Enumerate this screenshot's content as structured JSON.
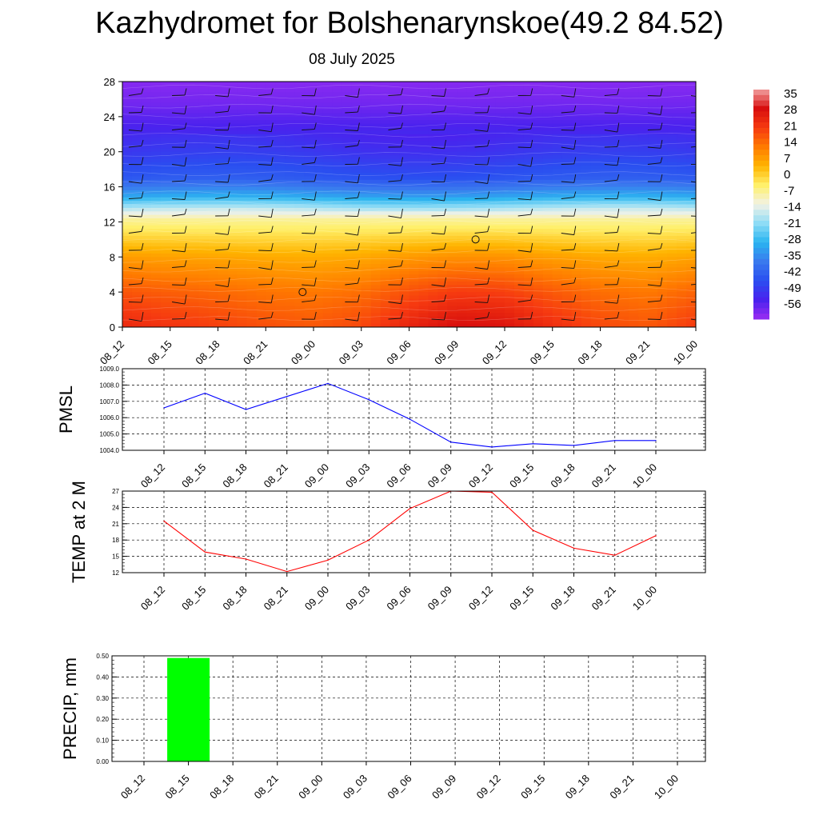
{
  "header": {
    "title": "Kazhydromet for Bolshenarynskoe(49.2 84.52)",
    "date": "08 July 2025"
  },
  "time_labels": [
    "08_12",
    "08_15",
    "08_18",
    "08_21",
    "09_00",
    "09_03",
    "09_06",
    "09_09",
    "09_12",
    "09_15",
    "09_18",
    "09_21",
    "10_00"
  ],
  "chart_data": [
    {
      "type": "heatmap",
      "id": "temperature-cross-section",
      "x": [
        "08_12",
        "08_15",
        "08_18",
        "08_21",
        "09_00",
        "09_03",
        "09_06",
        "09_09",
        "09_12",
        "09_15",
        "09_18",
        "09_21",
        "10_00"
      ],
      "y_ticks": [
        0,
        4,
        8,
        12,
        16,
        20,
        24,
        28
      ],
      "ylim": [
        0,
        28
      ],
      "colorbar": {
        "ticks": [
          "35",
          "28",
          "21",
          "14",
          "7",
          "0",
          "-7",
          "-14",
          "-21",
          "-28",
          "-35",
          "-42",
          "-49",
          "-56"
        ],
        "range": [
          -60,
          38
        ],
        "colors": [
          "#9a2cf2",
          "#4a22ee",
          "#2a4ef0",
          "#3a7aee",
          "#2ab4f0",
          "#8edcf6",
          "#f2f2e6",
          "#fff06a",
          "#ffb400",
          "#ff7a00",
          "#f63a10",
          "#d80e0e",
          "#f0a0a0"
        ]
      },
      "profile_by_height": [
        {
          "h": 0,
          "v": 23
        },
        {
          "h": 4,
          "v": 17
        },
        {
          "h": 8,
          "v": 8
        },
        {
          "h": 12.3,
          "v": -6
        },
        {
          "h": 13.5,
          "v": -16
        },
        {
          "h": 15,
          "v": -30
        },
        {
          "h": 17,
          "v": -42
        },
        {
          "h": 20,
          "v": -48
        },
        {
          "h": 23,
          "v": -52
        },
        {
          "h": 25.5,
          "v": -56
        },
        {
          "h": 28,
          "v": -58
        }
      ],
      "surface_anomaly_by_time": [
        2,
        0,
        -2,
        -4,
        -5,
        -3,
        3,
        7,
        6,
        1,
        -3,
        -5,
        -1
      ],
      "markers": [
        {
          "x": "09_00",
          "h": 4
        },
        {
          "x": "09_12",
          "h": 10
        }
      ]
    },
    {
      "type": "line",
      "id": "pmsl",
      "ylabel": "PMSL",
      "x": [
        "08_12",
        "08_15",
        "08_18",
        "08_21",
        "09_00",
        "09_03",
        "09_06",
        "09_09",
        "09_12",
        "09_15",
        "09_18",
        "09_21",
        "10_00"
      ],
      "series": [
        {
          "values": [
            1006.6,
            1007.5,
            1006.5,
            1007.3,
            1008.1,
            1007.1,
            1005.9,
            1004.5,
            1004.2,
            1004.4,
            1004.3,
            1004.6,
            1004.6
          ],
          "color": "#0000ff"
        }
      ],
      "ylim": [
        1004.0,
        1009.0
      ],
      "y_ticks": [
        "1004.0",
        "1005.0",
        "1006.0",
        "1007.0",
        "1008.0",
        "1009.0"
      ],
      "grid": true
    },
    {
      "type": "line",
      "id": "temp2m",
      "ylabel": "TEMP at 2 M",
      "x": [
        "08_12",
        "08_15",
        "08_18",
        "08_21",
        "09_00",
        "09_03",
        "09_06",
        "09_09",
        "09_12",
        "09_15",
        "09_18",
        "09_21",
        "10_00"
      ],
      "series": [
        {
          "values": [
            21.5,
            15.8,
            14.5,
            12.2,
            14.3,
            18.0,
            23.8,
            27.0,
            26.8,
            19.8,
            16.5,
            15.2,
            18.8
          ],
          "color": "#ff0000"
        }
      ],
      "ylim": [
        12,
        27
      ],
      "y_ticks": [
        "12",
        "15",
        "18",
        "21",
        "24",
        "27"
      ],
      "grid": true
    },
    {
      "type": "bar",
      "id": "precip",
      "ylabel": "PRECIP, mm",
      "categories": [
        "08_15"
      ],
      "values": [
        0.49
      ],
      "x": [
        "08_12",
        "08_15",
        "08_18",
        "08_21",
        "09_00",
        "09_03",
        "09_06",
        "09_09",
        "09_12",
        "09_15",
        "09_18",
        "09_21",
        "10_00"
      ],
      "ylim": [
        0,
        0.5
      ],
      "y_ticks": [
        "0.00",
        "0.10",
        "0.20",
        "0.30",
        "0.40",
        "0.50"
      ],
      "color": "#00ff00",
      "grid": true
    }
  ]
}
